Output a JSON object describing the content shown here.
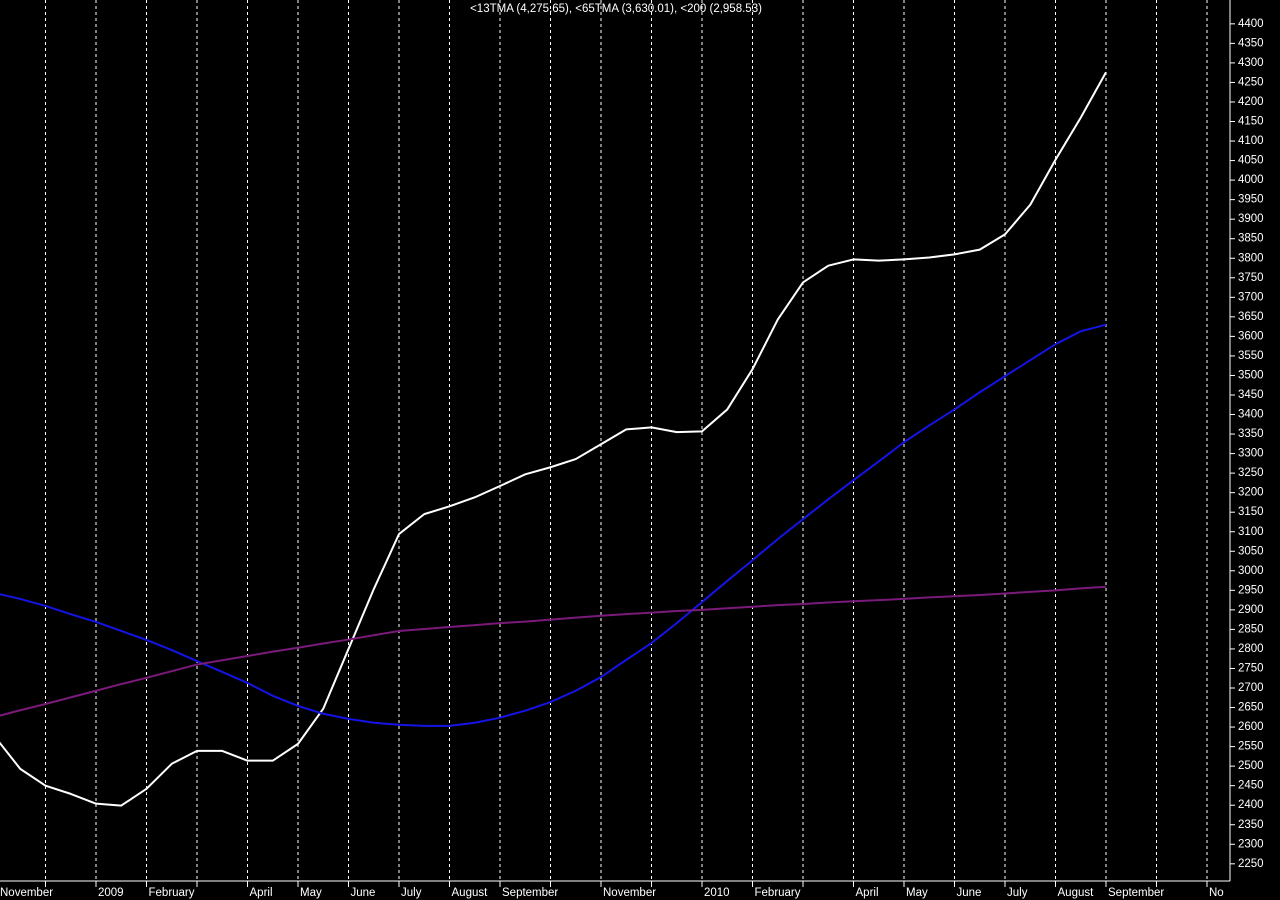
{
  "chart_data": {
    "type": "line",
    "title": "<13TMA (4,275.65), <65TMA (3,630.01), <200 (2,958.53)",
    "categories": [
      "November",
      null,
      null,
      null,
      "2009",
      null,
      "February",
      null,
      null,
      null,
      "April",
      null,
      "May",
      null,
      "June",
      null,
      "July",
      null,
      "August",
      null,
      "September",
      null,
      null,
      null,
      "November",
      null,
      null,
      null,
      "2010",
      null,
      "February",
      null,
      null,
      null,
      "April",
      null,
      "May",
      null,
      "June",
      null,
      "July",
      null,
      "August",
      null,
      "September",
      null,
      null,
      null,
      "No"
    ],
    "series": [
      {
        "color": "#ffffff",
        "values": [
          2575,
          2493,
          2450,
          2429,
          2404,
          2399,
          2442,
          2506,
          2539,
          2539,
          2514,
          2514,
          2557,
          2647,
          2800,
          2953,
          3094,
          3145,
          3165,
          3188,
          3217,
          3247,
          3265,
          3286,
          3324,
          3362,
          3367,
          3355,
          3357,
          3413,
          3516,
          3643,
          3738,
          3781,
          3797,
          3794,
          3797,
          3802,
          3810,
          3822,
          3861,
          3937,
          4052,
          4160,
          4276,
          null,
          null,
          null,
          null
        ]
      },
      {
        "color": "#1414e6",
        "values": [
          2943,
          2928,
          2910,
          2889,
          2869,
          2846,
          2823,
          2797,
          2769,
          2741,
          2713,
          2680,
          2654,
          2634,
          2621,
          2611,
          2606,
          2603,
          2603,
          2611,
          2624,
          2642,
          2664,
          2693,
          2728,
          2772,
          2815,
          2866,
          2920,
          2974,
          3027,
          3081,
          3132,
          3183,
          3232,
          3280,
          3329,
          3372,
          3413,
          3457,
          3498,
          3539,
          3580,
          3613,
          3630,
          null,
          null,
          null,
          null
        ]
      },
      {
        "color": "#7a1a7a",
        "values": [
          2626,
          2643,
          2659,
          2676,
          2693,
          2710,
          2726,
          2743,
          2760,
          2771,
          2782,
          2793,
          2803,
          2814,
          2824,
          2835,
          2846,
          2851,
          2856,
          2861,
          2866,
          2870,
          2875,
          2880,
          2885,
          2889,
          2893,
          2897,
          2900,
          2904,
          2908,
          2912,
          2915,
          2919,
          2922,
          2925,
          2928,
          2932,
          2935,
          2938,
          2942,
          2946,
          2950,
          2955,
          2959,
          null,
          null,
          null,
          null
        ]
      }
    ],
    "ylim": [
      2206,
      4461
    ],
    "yticks": [
      2250,
      2300,
      2350,
      2400,
      2450,
      2500,
      2550,
      2600,
      2650,
      2700,
      2750,
      2800,
      2850,
      2900,
      2950,
      3000,
      3050,
      3100,
      3150,
      3200,
      3250,
      3300,
      3350,
      3400,
      3450,
      3500,
      3550,
      3600,
      3650,
      3700,
      3750,
      3800,
      3850,
      3900,
      3950,
      4000,
      4050,
      4100,
      4150,
      4200,
      4250,
      4300,
      4350,
      4400
    ],
    "grid": true
  }
}
